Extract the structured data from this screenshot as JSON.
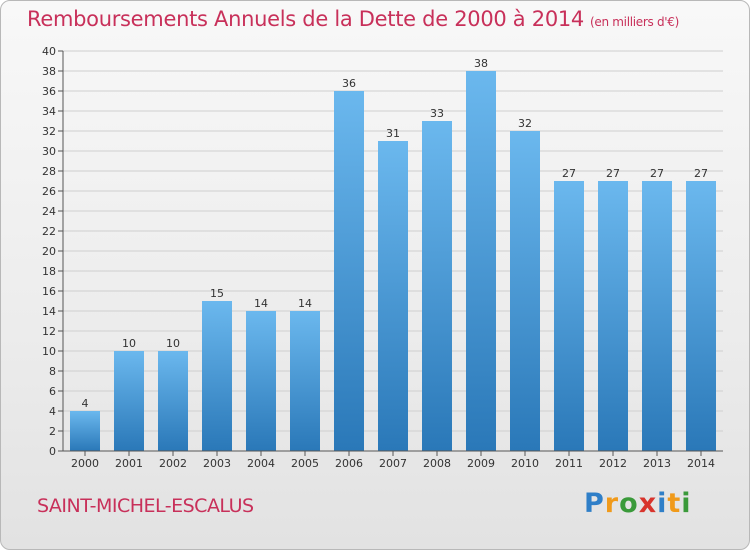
{
  "chart_data": {
    "type": "bar",
    "title": "Remboursements Annuels de la Dette de 2000 à 2014",
    "unit_note": "(en milliers d'€)",
    "categories": [
      "2000",
      "2001",
      "2002",
      "2003",
      "2004",
      "2005",
      "2006",
      "2007",
      "2008",
      "2009",
      "2010",
      "2011",
      "2012",
      "2013",
      "2014"
    ],
    "values": [
      4,
      10,
      10,
      15,
      14,
      14,
      36,
      31,
      33,
      38,
      32,
      27,
      27,
      27,
      27
    ],
    "ylim": [
      0,
      40
    ],
    "yticks": [
      0,
      2,
      4,
      6,
      8,
      10,
      12,
      14,
      16,
      18,
      20,
      22,
      24,
      26,
      28,
      30,
      32,
      34,
      36,
      38,
      40
    ],
    "grid": true,
    "colors": {
      "bar_top": "#6bb8ee",
      "bar_bottom": "#2a78b8",
      "grid": "#cfcfcf",
      "title": "#c8305a"
    }
  },
  "footer": {
    "commune": "SAINT-MICHEL-ESCALUS"
  },
  "logo": {
    "text": "Proxiti",
    "letters": [
      {
        "ch": "P",
        "color": "#2f7fc8"
      },
      {
        "ch": "r",
        "color": "#f09a1a"
      },
      {
        "ch": "o",
        "color": "#3a9a3a"
      },
      {
        "ch": "x",
        "color": "#d8342c"
      },
      {
        "ch": "i",
        "color": "#2f7fc8"
      },
      {
        "ch": "t",
        "color": "#f09a1a"
      },
      {
        "ch": "i",
        "color": "#3a9a3a"
      }
    ]
  }
}
